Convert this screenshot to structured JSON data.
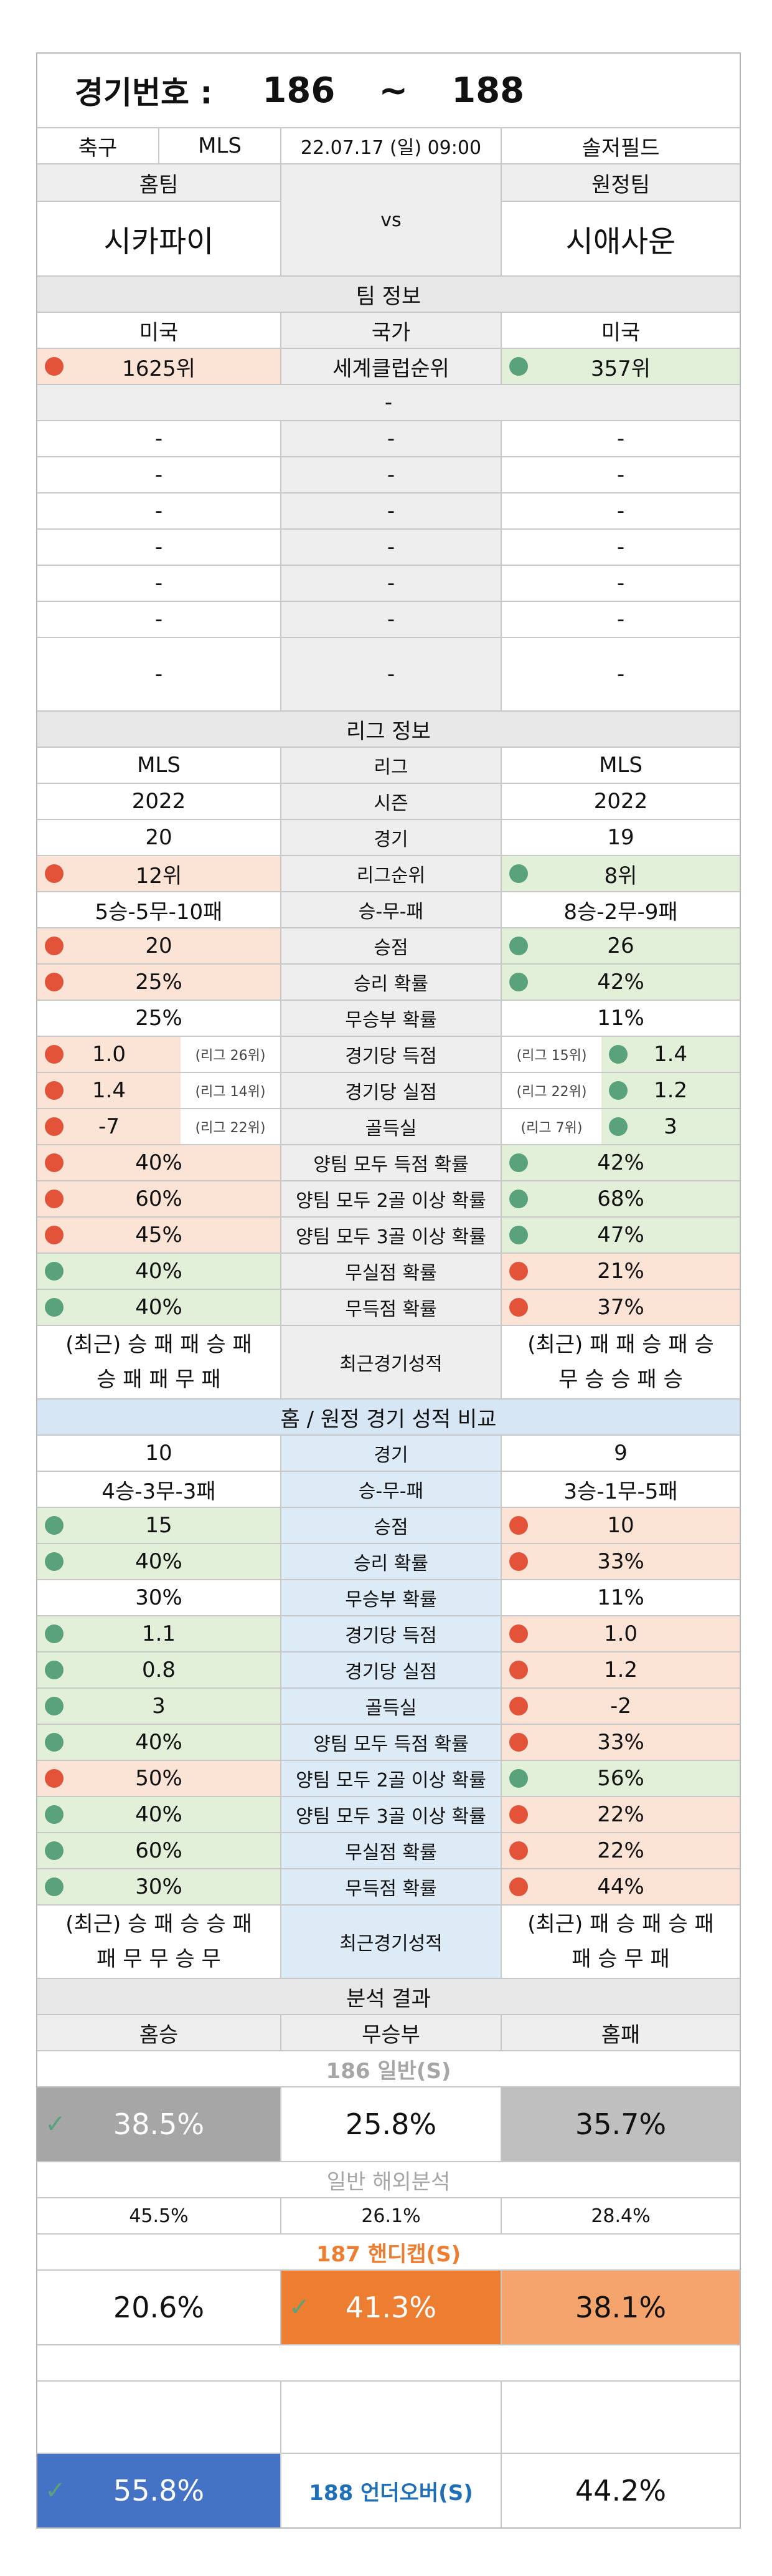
{
  "header": {
    "title": "경기번호 :",
    "start": "186",
    "sep": "~",
    "end": "188"
  },
  "match": {
    "sport": "축구",
    "league": "MLS",
    "datetime": "22.07.17 (일) 09:00",
    "venue": "솔저필드"
  },
  "teams": {
    "home_label": "홈팀",
    "away_label": "원정팀",
    "home": "시카파이",
    "vs": "vs",
    "away": "시애사운"
  },
  "team_info": {
    "title": "팀 정보",
    "country": {
      "home": "미국",
      "label": "국가",
      "away": "미국"
    },
    "club_rank": {
      "home": "1625위",
      "label": "세계클럽순위",
      "away": "357위"
    },
    "blank_header": "-",
    "blank_rows": [
      [
        "-",
        "-",
        "-"
      ],
      [
        "-",
        "-",
        "-"
      ],
      [
        "-",
        "-",
        "-"
      ],
      [
        "-",
        "-",
        "-"
      ],
      [
        "-",
        "-",
        "-"
      ],
      [
        "-",
        "-",
        "-"
      ],
      [
        "-",
        "-",
        "-"
      ]
    ]
  },
  "league_info": {
    "title": "리그 정보",
    "rows": [
      {
        "home": "MLS",
        "label": "리그",
        "away": "MLS"
      },
      {
        "home": "2022",
        "label": "시즌",
        "away": "2022"
      },
      {
        "home": "20",
        "label": "경기",
        "away": "19"
      },
      {
        "home": "12위",
        "label": "리그순위",
        "away": "8위"
      },
      {
        "home": "5승-5무-10패",
        "label": "승-무-패",
        "away": "8승-2무-9패"
      },
      {
        "home": "20",
        "label": "승점",
        "away": "26"
      },
      {
        "home": "25%",
        "label": "승리 확률",
        "away": "42%"
      },
      {
        "home": "25%",
        "label": "무승부 확률",
        "away": "11%"
      },
      {
        "home": "1.0",
        "home_rank": "(리그 26위)",
        "label": "경기당 득점",
        "away_rank": "(리그 15위)",
        "away": "1.4"
      },
      {
        "home": "1.4",
        "home_rank": "(리그 14위)",
        "label": "경기당 실점",
        "away_rank": "(리그 22위)",
        "away": "1.2"
      },
      {
        "home": "-7",
        "home_rank": "(리그 22위)",
        "label": "골득실",
        "away_rank": "(리그 7위)",
        "away": "3"
      },
      {
        "home": "40%",
        "label": "양팀 모두 득점 확률",
        "away": "42%"
      },
      {
        "home": "60%",
        "label": "양팀 모두 2골 이상 확률",
        "away": "68%"
      },
      {
        "home": "45%",
        "label": "양팀 모두 3골 이상 확률",
        "away": "47%"
      },
      {
        "home": "40%",
        "label": "무실점 확률",
        "away": "21%"
      },
      {
        "home": "40%",
        "label": "무득점 확률",
        "away": "37%"
      }
    ],
    "recent": {
      "home_l1": "(최근) 승 패 패 승 패",
      "home_l2": "승 패 패 무 패",
      "label": "최근경기성적",
      "away_l1": "(최근) 패 패 승 패 승",
      "away_l2": "무 승 승 패 승"
    }
  },
  "ha_compare": {
    "title": "홈 / 원정 경기 성적 비교",
    "rows": [
      {
        "home": "10",
        "label": "경기",
        "away": "9"
      },
      {
        "home": "4승-3무-3패",
        "label": "승-무-패",
        "away": "3승-1무-5패"
      },
      {
        "home": "15",
        "label": "승점",
        "away": "10"
      },
      {
        "home": "40%",
        "label": "승리 확률",
        "away": "33%"
      },
      {
        "home": "30%",
        "label": "무승부 확률",
        "away": "11%"
      },
      {
        "home": "1.1",
        "label": "경기당 득점",
        "away": "1.0"
      },
      {
        "home": "0.8",
        "label": "경기당 실점",
        "away": "1.2"
      },
      {
        "home": "3",
        "label": "골득실",
        "away": "-2"
      },
      {
        "home": "40%",
        "label": "양팀 모두 득점 확률",
        "away": "33%"
      },
      {
        "home": "50%",
        "label": "양팀 모두 2골 이상 확률",
        "away": "56%"
      },
      {
        "home": "40%",
        "label": "양팀 모두 3골 이상 확률",
        "away": "22%"
      },
      {
        "home": "60%",
        "label": "무실점 확률",
        "away": "22%"
      },
      {
        "home": "30%",
        "label": "무득점 확률",
        "away": "44%"
      }
    ],
    "recent": {
      "home_l1": "(최근) 승 패 승 승 패",
      "home_l2": "패 무 무 승 무",
      "label": "최근경기성적",
      "away_l1": "(최근) 패 승 패 승 패",
      "away_l2": "패 승 무 패"
    }
  },
  "analysis": {
    "title": "분석 결과",
    "cols": {
      "home": "홈승",
      "draw": "무승부",
      "away": "홈패"
    },
    "general_label": "186 일반(S)",
    "general": {
      "home": "38.5%",
      "draw": "25.8%",
      "away": "35.7%"
    },
    "overseas_label": "일반 해외분석",
    "overseas": {
      "home": "45.5%",
      "draw": "26.1%",
      "away": "28.4%"
    },
    "handicap_label": "187 핸디캡(S)",
    "handicap": {
      "home": "20.6%",
      "draw": "41.3%",
      "away": "38.1%"
    },
    "underover": {
      "over": "55.8%",
      "label": "188 언더오버(S)",
      "under": "44.2%"
    }
  },
  "colors": {
    "peach": "#fbe3d6",
    "green": "#e3f0d9",
    "red_dot": "#e2533a",
    "green_dot": "#5aa27c",
    "orange": "#ed7d31",
    "light_orange": "#f4a46c",
    "blue": "#4472c4",
    "grey_cell": "#a6a6a6",
    "label_blue": "#1f6fb8"
  }
}
